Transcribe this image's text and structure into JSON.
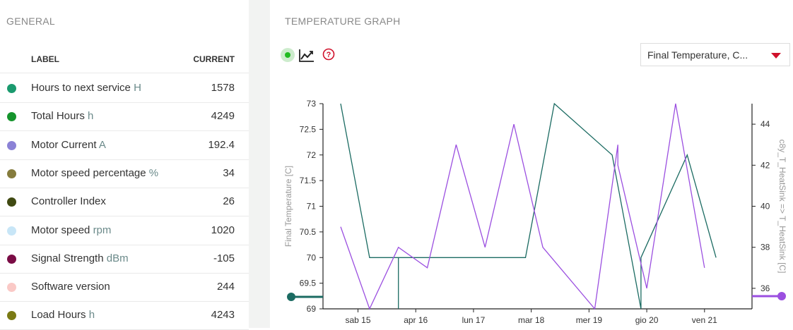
{
  "general": {
    "title": "GENERAL",
    "col_label": "LABEL",
    "col_current": "CURRENT",
    "rows": [
      {
        "label": "Hours to next service",
        "unit": "H",
        "value": "1578",
        "color": "#1a9a6e"
      },
      {
        "label": "Total Hours",
        "unit": "h",
        "value": "4249",
        "color": "#15942c"
      },
      {
        "label": "Motor Current",
        "unit": "A",
        "value": "192.4",
        "color": "#8b82d6"
      },
      {
        "label": "Motor speed percentage",
        "unit": "%",
        "value": "34",
        "color": "#857c3d"
      },
      {
        "label": "Controller Index",
        "unit": "",
        "value": "26",
        "color": "#404a12"
      },
      {
        "label": "Motor speed",
        "unit": "rpm",
        "value": "1020",
        "color": "#c8e6f7"
      },
      {
        "label": "Signal Strength",
        "unit": "dBm",
        "value": "-105",
        "color": "#7a0c45"
      },
      {
        "label": "Software version",
        "unit": "",
        "value": "244",
        "color": "#fac9c6"
      },
      {
        "label": "Load Hours",
        "unit": "h",
        "value": "4243",
        "color": "#7a7a14"
      }
    ]
  },
  "graph": {
    "title": "TEMPERATURE GRAPH",
    "status_icon": "status-dot-icon",
    "trend_icon": "trend-chart-icon",
    "help_icon": "question-circle-icon",
    "dropdown_value": "Final Temperature, C...",
    "accent_color": "#d0112b"
  },
  "chart_data": {
    "type": "line",
    "ylabel": "Final Temperature [C]",
    "y2label": "c8y_T_HeatSink => T_HeatSink [C]",
    "ylim": [
      69,
      73
    ],
    "y_ticks": [
      "69",
      "69.5",
      "70",
      "70.5",
      "71",
      "71.5",
      "72",
      "72.5",
      "73"
    ],
    "y2lim": [
      35,
      45
    ],
    "y2_ticks": [
      "36",
      "38",
      "40",
      "42",
      "44"
    ],
    "xlim": [
      0,
      7
    ],
    "x_tick_labels": [
      "sab 15",
      "apr 16",
      "lun 17",
      "mar 18",
      "mer 19",
      "gio 20",
      "ven 21"
    ],
    "x_tick_positions": [
      0.3,
      1.3,
      2.3,
      3.3,
      4.3,
      5.3,
      6.3
    ],
    "series": [
      {
        "axis": "left",
        "color": "#1b6b62",
        "points": [
          [
            0.0,
            73
          ],
          [
            0.5,
            70
          ],
          [
            1.0,
            70
          ],
          [
            1.0,
            69
          ],
          [
            1.0,
            70
          ],
          [
            3.2,
            70
          ],
          [
            3.7,
            73
          ],
          [
            4.7,
            72
          ],
          [
            5.2,
            69
          ],
          [
            5.2,
            70
          ],
          [
            6.0,
            72
          ],
          [
            6.5,
            70
          ]
        ]
      },
      {
        "axis": "right",
        "color": "#9b4fe0",
        "points": [
          [
            0.0,
            39
          ],
          [
            0.5,
            35
          ],
          [
            1.0,
            38
          ],
          [
            1.5,
            37
          ],
          [
            2.0,
            43
          ],
          [
            2.5,
            38
          ],
          [
            3.0,
            44
          ],
          [
            3.5,
            38
          ],
          [
            4.4,
            35
          ],
          [
            4.8,
            43
          ],
          [
            4.8,
            42
          ],
          [
            5.3,
            36
          ],
          [
            5.8,
            45
          ],
          [
            6.3,
            37
          ]
        ]
      }
    ]
  }
}
